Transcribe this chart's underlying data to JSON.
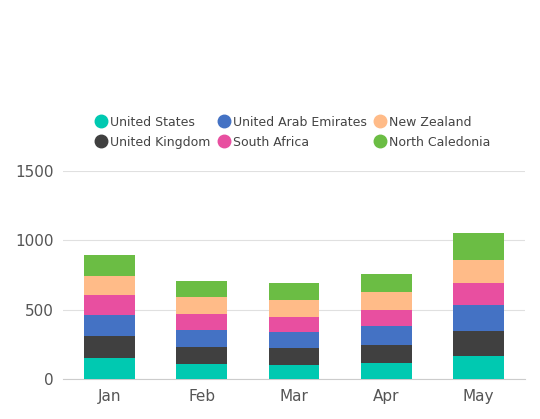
{
  "categories": [
    "Jan",
    "Feb",
    "Mar",
    "Apr",
    "May"
  ],
  "series": [
    {
      "name": "United States",
      "color": "#00C9B1",
      "values": [
        155,
        110,
        105,
        120,
        165
      ]
    },
    {
      "name": "United Kingdom",
      "color": "#404040",
      "values": [
        155,
        125,
        120,
        130,
        185
      ]
    },
    {
      "name": "United Arab Emirates",
      "color": "#4472C4",
      "values": [
        150,
        120,
        115,
        130,
        185
      ]
    },
    {
      "name": "South Africa",
      "color": "#E84FA0",
      "values": [
        145,
        115,
        110,
        120,
        160
      ]
    },
    {
      "name": "New Zealand",
      "color": "#FFBB88",
      "values": [
        135,
        120,
        120,
        130,
        165
      ]
    },
    {
      "name": "North Caledonia",
      "color": "#6BBD44",
      "values": [
        155,
        120,
        120,
        125,
        195
      ]
    }
  ],
  "ylim": [
    0,
    1500
  ],
  "yticks": [
    0,
    500,
    1000,
    1500
  ],
  "background_color": "#ffffff",
  "bar_width": 0.55,
  "figsize": [
    5.4,
    4.19
  ],
  "dpi": 100
}
